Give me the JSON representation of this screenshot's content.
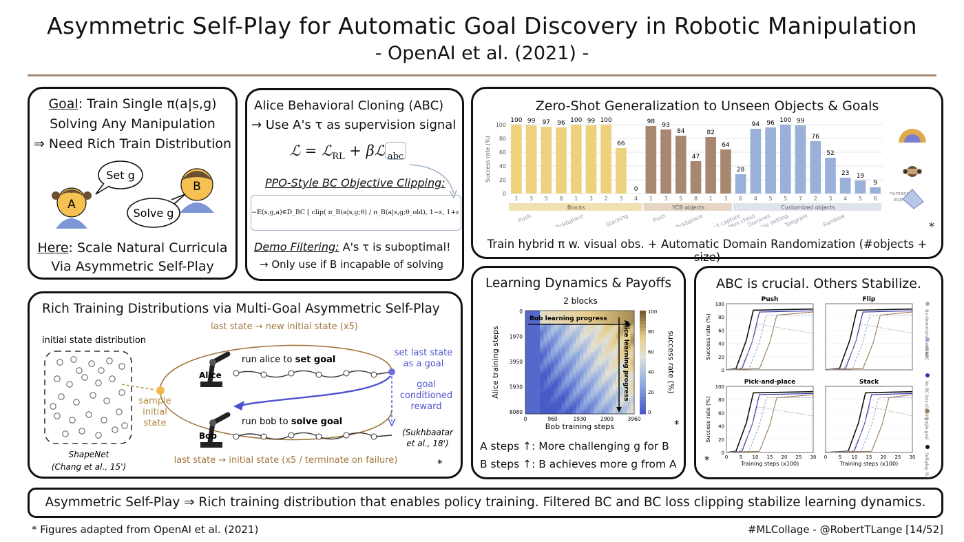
{
  "header": {
    "title": "Asymmetric Self-Play for Automatic Goal Discovery in Robotic Manipulation",
    "subtitle": "- OpenAI et al. (2021) -"
  },
  "goal_panel": {
    "goal_word": "Goal",
    "goal_rest": ": Train Single π(a|s,g)",
    "line2": "Solving Any Manipulation",
    "line3": "⇒ Need Rich Train Distribution",
    "bubble_alice": "Set g",
    "bubble_bob": "Solve g",
    "alice_letter": "A",
    "bob_letter": "B",
    "here_word": "Here",
    "here_rest": ": Scale Natural Curricula",
    "line5": "Via Asymmetric Self-Play"
  },
  "abc_panel": {
    "title": "Alice Behavioral Cloning (ABC)",
    "line2": "→ Use A's τ as supervision signal",
    "loss_lhs": "ℒ = ℒ",
    "loss_rl": "RL",
    "loss_mid": " + βℒ",
    "loss_abc": "abc",
    "clip_heading": "PPO-Style BC Objective Clipping:",
    "clip_formula": "−𝔼(s,g,a)∈D_BC [ clip( π_B(a|s,g;θ) / π_B(a|s,g;θ_old), 1−ε, 1+ε ) ]",
    "demo_heading": "Demo Filtering:",
    "demo_rest": " A's τ is suboptimal!",
    "demo_line2": "→ Only use if B incapable of solving"
  },
  "zero_shot_panel": {
    "title": "Zero-Shot Generalization to Unseen Objects & Goals",
    "footer": "Train hybrid π w. visual obs. + Automatic Domain Randomization (#objects + size)",
    "asterisk": "*",
    "number_of_objects": "number of objects",
    "group_labels": [
      "Blocks",
      "YCB objects",
      "Customized objects"
    ],
    "task_labels": [
      "Push",
      "Pick&place",
      "Stacking",
      "Push",
      "Pick&place",
      "Ball capture",
      "Mini chess",
      "Dominos",
      "Table setting",
      "Tangram",
      "Rainbow"
    ]
  },
  "rich_panel": {
    "title": "Rich Training Distributions via Multi-Goal Asymmetric Self-Play",
    "initial_state_distribution": "initial state distribution",
    "shapenet": "ShapeNet",
    "shapenet_cite": "(Chang et al., 15')",
    "sample_initial_state": [
      "sample",
      "initial",
      "state"
    ],
    "top_loop": "last state → new initial state (x5)",
    "alice": "Alice",
    "bob": "Bob",
    "run_alice": "run alice to ",
    "set_goal": "set goal",
    "run_bob": "run bob to ",
    "solve_goal": "solve goal",
    "set_last_state": [
      "set last state",
      "as a goal"
    ],
    "goal_reward": [
      "goal",
      "conditioned",
      "reward"
    ],
    "cite": [
      "(Sukhbaatar",
      "et al., 18')"
    ],
    "bottom_loop": "last state → initial state (x5 / terminate on failure)",
    "asterisk": "*"
  },
  "learning_panel": {
    "title": "Learning Dynamics & Payoffs",
    "chart_title": "2 blocks",
    "bob_progress": "Bob learning progress",
    "alice_progress": "Alice learning progress",
    "ylabel": "Alice training steps",
    "xlabel": "Bob training steps",
    "colorbar_label": "success rate (%)",
    "y_ticks": [
      "0",
      "1970",
      "3950",
      "5930",
      "8080"
    ],
    "x_ticks": [
      "0",
      "960",
      "1930",
      "2900",
      "3960"
    ],
    "cb_ticks": [
      "100",
      "80",
      "60",
      "40",
      "20",
      "0"
    ],
    "a_steps": "A steps ↑: More challenging g for B",
    "b_steps": "B steps ↑: B achieves more g from A",
    "asterisk": "*"
  },
  "abc_crucial_panel": {
    "title": "ABC is crucial. Others Stabilize.",
    "subplots": [
      "Push",
      "Flip",
      "Pick-and-place",
      "Stack"
    ],
    "ylabel": "Success rate (%)",
    "xlabel": "Training steps (x100)",
    "y_ticks": [
      "0",
      "20",
      "40",
      "60",
      "80",
      "100"
    ],
    "x_ticks": [
      "0",
      "5",
      "10",
      "15",
      "20",
      "25",
      "30"
    ],
    "legend": [
      "No demonstration filter",
      "No ABC",
      "No BC loss clipping",
      "Single-goal",
      "Self-play (full setup)"
    ],
    "asterisk": "*"
  },
  "summary": "Asymmetric Self-Play ⇒ Rich training distribution that enables policy training. Filtered BC and BC loss clipping stabilize learning dynamics.",
  "footer": {
    "left": "* Figures adapted from OpenAI et al. (2021)",
    "right": "#MLCollage - @RobertTLange [14/52]"
  },
  "chart_data": [
    {
      "type": "bar",
      "ylabel": "Success rate (%)",
      "ylim": [
        0,
        100
      ],
      "categories": [
        "1",
        "3",
        "5",
        "8",
        "1",
        "3",
        "2",
        "3",
        "4",
        "1",
        "3",
        "5",
        "8",
        "1",
        "3",
        "6",
        "4",
        "5",
        "5",
        "7",
        "2",
        "3",
        "4",
        "5",
        "6"
      ],
      "values": [
        100,
        99,
        97,
        96,
        100,
        99,
        100,
        66,
        0,
        98,
        93,
        84,
        47,
        82,
        64,
        28,
        94,
        96,
        100,
        99,
        76,
        52,
        23,
        19,
        9
      ],
      "groups": [
        "Blocks",
        "Blocks",
        "Blocks",
        "Blocks",
        "Blocks",
        "Blocks",
        "Blocks",
        "Blocks",
        "Blocks",
        "YCB objects",
        "YCB objects",
        "YCB objects",
        "YCB objects",
        "YCB objects",
        "YCB objects",
        "Customized objects",
        "Customized objects",
        "Customized objects",
        "Customized objects",
        "Customized objects",
        "Customized objects",
        "Customized objects",
        "Customized objects",
        "Customized objects",
        "Customized objects"
      ],
      "colors": {
        "Blocks": "#ecd27c",
        "YCB objects": "#a88770",
        "Customized objects": "#9ab0d8"
      }
    },
    {
      "type": "heatmap",
      "title": "2 blocks",
      "xlabel": "Bob training steps",
      "ylabel": "Alice training steps",
      "xlim": [
        0,
        3960
      ],
      "ylim": [
        0,
        8080
      ],
      "colorbar": [
        0,
        100
      ]
    },
    {
      "type": "line",
      "ylabel": "Success rate (%)",
      "xlabel": "Training steps (x100)",
      "ylim": [
        0,
        100
      ],
      "xlim": [
        0,
        30
      ],
      "subplots": [
        "Push",
        "Flip",
        "Pick-and-place",
        "Stack"
      ]
    }
  ]
}
